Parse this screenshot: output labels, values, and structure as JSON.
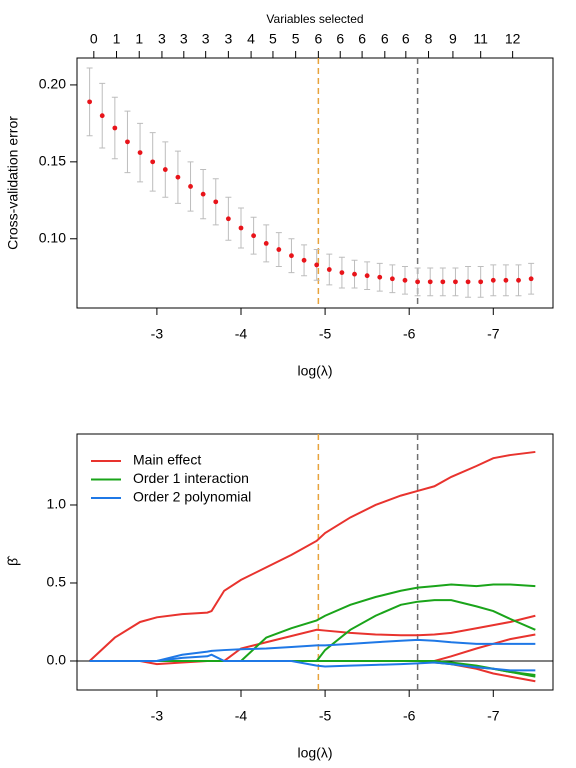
{
  "chart_data": [
    {
      "type": "scatter",
      "title": "Variables selected",
      "ylabel": "Cross-validation error",
      "xlabel": "log(λ)",
      "xlim": [
        -2.05,
        -7.71
      ],
      "ylim": [
        0.055,
        0.2175
      ],
      "xticks": [
        -3,
        -4,
        -5,
        -6,
        -7
      ],
      "yticks": [
        {
          "value": 0.1,
          "label": "0.10"
        },
        0.15,
        {
          "value": 0.2,
          "label": "0.20"
        }
      ],
      "top_ticks": [
        {
          "value": -2.25,
          "label": "0"
        },
        {
          "value": -2.52,
          "label": "1"
        },
        {
          "value": -2.79,
          "label": "1"
        },
        {
          "value": -3.06,
          "label": "3"
        },
        {
          "value": -3.32,
          "label": "3"
        },
        {
          "value": -3.58,
          "label": "3"
        },
        {
          "value": -3.85,
          "label": "3"
        },
        {
          "value": -4.12,
          "label": "4"
        },
        {
          "value": -4.38,
          "label": "5"
        },
        {
          "value": -4.65,
          "label": "5"
        },
        {
          "value": -4.92,
          "label": "6"
        },
        {
          "value": -5.18,
          "label": "6"
        },
        {
          "value": -5.44,
          "label": "6"
        },
        {
          "value": -5.71,
          "label": "6"
        },
        {
          "value": -5.96,
          "label": "6"
        },
        {
          "value": -6.23,
          "label": "8"
        },
        {
          "value": -6.52,
          "label": "9"
        },
        {
          "value": -6.85,
          "label": "11"
        },
        {
          "value": -7.23,
          "label": "12"
        }
      ],
      "vlines": [
        {
          "value": -4.92,
          "color": "#e8a33c"
        },
        {
          "value": -6.1,
          "color": "#707070"
        }
      ],
      "color": "#e8141a",
      "error_color": "#bdbdbd",
      "x": [
        -2.2,
        -2.35,
        -2.5,
        -2.65,
        -2.8,
        -2.95,
        -3.1,
        -3.25,
        -3.4,
        -3.55,
        -3.7,
        -3.85,
        -4.0,
        -4.15,
        -4.3,
        -4.45,
        -4.6,
        -4.75,
        -4.9,
        -5.05,
        -5.2,
        -5.35,
        -5.5,
        -5.65,
        -5.8,
        -5.95,
        -6.1,
        -6.25,
        -6.4,
        -6.55,
        -6.7,
        -6.85,
        -7.0,
        -7.15,
        -7.3,
        -7.45
      ],
      "values": [
        0.189,
        0.18,
        0.172,
        0.163,
        0.156,
        0.15,
        0.145,
        0.14,
        0.134,
        0.129,
        0.124,
        0.113,
        0.107,
        0.102,
        0.097,
        0.093,
        0.089,
        0.086,
        0.083,
        0.08,
        0.078,
        0.077,
        0.076,
        0.075,
        0.074,
        0.073,
        0.072,
        0.072,
        0.072,
        0.072,
        0.072,
        0.072,
        0.073,
        0.073,
        0.073,
        0.074
      ],
      "errors": [
        0.022,
        0.021,
        0.02,
        0.02,
        0.019,
        0.019,
        0.018,
        0.017,
        0.016,
        0.016,
        0.015,
        0.014,
        0.013,
        0.012,
        0.012,
        0.011,
        0.011,
        0.01,
        0.01,
        0.01,
        0.01,
        0.009,
        0.009,
        0.009,
        0.009,
        0.009,
        0.009,
        0.009,
        0.009,
        0.009,
        0.01,
        0.01,
        0.01,
        0.01,
        0.01,
        0.01
      ]
    },
    {
      "type": "line",
      "ylabel": "β̂",
      "xlabel": "log(λ)",
      "xlim": [
        -2.05,
        -7.71
      ],
      "ylim": [
        -0.186,
        1.455
      ],
      "xticks": [
        -3,
        -4,
        -5,
        -6,
        -7
      ],
      "yticks": [
        {
          "value": 0,
          "label": "0.0"
        },
        {
          "value": 0.5,
          "label": "0.5"
        },
        {
          "value": 1,
          "label": "1.0"
        }
      ],
      "hline": 0,
      "vlines": [
        {
          "value": -4.92,
          "color": "#e8a33c"
        },
        {
          "value": -6.1,
          "color": "#707070"
        }
      ],
      "legend": [
        {
          "name": "Main effect",
          "color": "#e8332e"
        },
        {
          "name": "Order 1 interaction",
          "color": "#1aa41a"
        },
        {
          "name": "Order 2 polynomial",
          "color": "#1f78e6"
        }
      ],
      "x": [
        -2.2,
        -2.5,
        -2.8,
        -3.0,
        -3.3,
        -3.6,
        -3.65,
        -3.8,
        -4.0,
        -4.3,
        -4.6,
        -4.9,
        -5.0,
        -5.3,
        -5.6,
        -5.9,
        -6.1,
        -6.3,
        -6.5,
        -6.8,
        -7.0,
        -7.2,
        -7.5
      ],
      "series": [
        {
          "color": "#e8332e",
          "values": [
            0,
            0.15,
            0.25,
            0.28,
            0.3,
            0.31,
            0.32,
            0.45,
            0.52,
            0.6,
            0.68,
            0.77,
            0.82,
            0.92,
            1.0,
            1.06,
            1.09,
            1.12,
            1.18,
            1.25,
            1.3,
            1.32,
            1.34
          ]
        },
        {
          "color": "#e8332e",
          "values": [
            0,
            0,
            0,
            0,
            0,
            0,
            0,
            0,
            0.08,
            0.12,
            0.16,
            0.2,
            0.195,
            0.18,
            0.17,
            0.165,
            0.165,
            0.17,
            0.18,
            0.21,
            0.23,
            0.25,
            0.29
          ]
        },
        {
          "color": "#e8332e",
          "values": [
            0,
            0,
            0,
            0,
            0,
            0,
            0,
            0,
            0,
            0,
            0,
            0,
            0,
            0,
            0,
            0,
            0,
            0,
            0.03,
            0.08,
            0.11,
            0.14,
            0.17
          ]
        },
        {
          "color": "#e8332e",
          "values": [
            0,
            0,
            0,
            -0.02,
            -0.01,
            0,
            0,
            0,
            0,
            0,
            0,
            0,
            0,
            0,
            0,
            0,
            0,
            0,
            -0.02,
            -0.05,
            -0.08,
            -0.1,
            -0.13
          ]
        },
        {
          "color": "#1aa41a",
          "values": [
            0,
            0,
            0,
            0,
            0,
            0,
            0,
            0,
            0,
            0.15,
            0.21,
            0.26,
            0.29,
            0.36,
            0.41,
            0.45,
            0.47,
            0.48,
            0.49,
            0.48,
            0.49,
            0.49,
            0.48
          ]
        },
        {
          "color": "#1aa41a",
          "values": [
            0,
            0,
            0,
            0,
            0,
            0,
            0,
            0,
            0,
            0,
            0,
            0,
            0.07,
            0.2,
            0.29,
            0.36,
            0.38,
            0.39,
            0.39,
            0.35,
            0.32,
            0.27,
            0.2
          ]
        },
        {
          "color": "#1aa41a",
          "values": [
            0,
            0,
            0,
            0,
            0,
            0,
            0,
            0,
            0,
            0,
            0,
            0,
            0,
            0,
            0,
            0,
            0,
            -0.01,
            -0.02,
            -0.04,
            -0.05,
            -0.07,
            -0.1
          ]
        },
        {
          "color": "#1aa41a",
          "values": [
            0,
            0,
            0,
            0,
            0,
            0,
            0,
            0,
            0,
            0,
            0,
            0,
            0,
            0,
            0,
            0,
            0,
            0,
            -0.01,
            -0.03,
            -0.05,
            -0.07,
            -0.09
          ]
        },
        {
          "color": "#1f78e6",
          "values": [
            0,
            0,
            0,
            0,
            0.04,
            0.06,
            0.065,
            0.07,
            0.075,
            0.08,
            0.09,
            0.1,
            0.1,
            0.11,
            0.12,
            0.13,
            0.135,
            0.13,
            0.12,
            0.11,
            0.11,
            0.11,
            0.11
          ]
        },
        {
          "color": "#1f78e6",
          "values": [
            0,
            0,
            0,
            0,
            0.02,
            0.03,
            0.04,
            0,
            0,
            0,
            0,
            -0.03,
            -0.035,
            -0.03,
            -0.025,
            -0.02,
            -0.015,
            -0.01,
            -0.02,
            -0.04,
            -0.05,
            -0.06,
            -0.06
          ]
        }
      ]
    }
  ]
}
